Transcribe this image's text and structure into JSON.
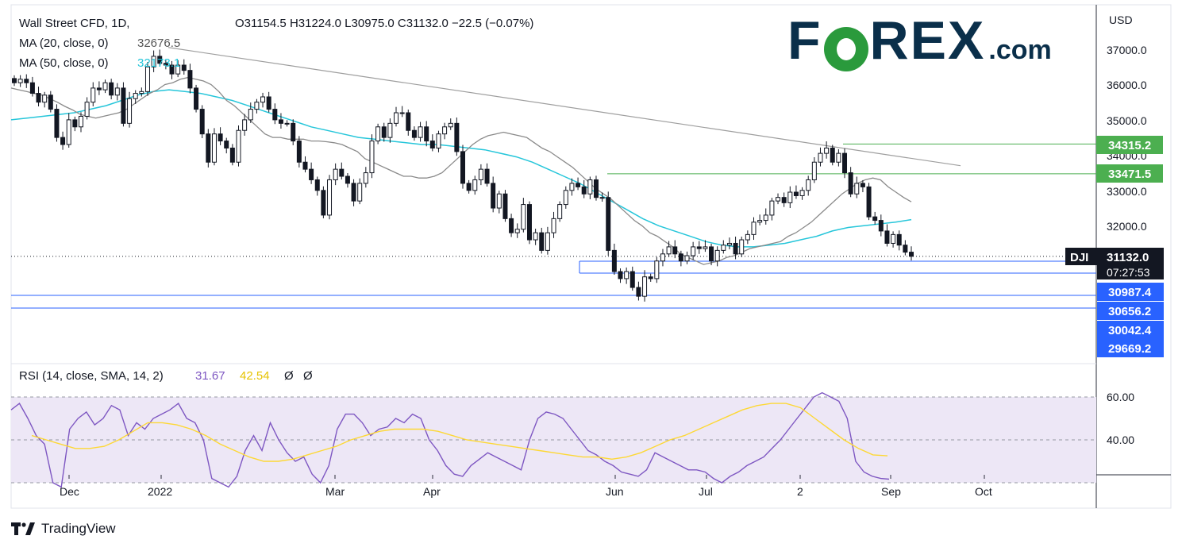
{
  "legend": {
    "symbol": "Wall Street CFD, 1D,",
    "ohlc": "O31154.5  H31224.0  L30975.0  C31132.0  −22.5 (−0.07%)",
    "ma20_label": "MA (20, close, 0)",
    "ma20_value": "32676.5",
    "ma50_label": "MA (50, close, 0)",
    "ma50_value": "32173.1",
    "rsi_label": "RSI (14, close, SMA, 14, 2)",
    "rsi_value": "31.67",
    "rsi_sma_value": "42.54",
    "rsi_extra1": "Ø",
    "rsi_extra2": "Ø"
  },
  "brand": {
    "name_pre": "F",
    "name_post": "REX",
    "suffix": ".com"
  },
  "footer": {
    "logo_text": "TradingView"
  },
  "price_axis": {
    "currency": "USD",
    "ticks": [
      "37000.0",
      "36000.0",
      "35000.0",
      "34000.0",
      "33000.0",
      "32000.0"
    ]
  },
  "rsi_axis": {
    "ticks": [
      "60.00",
      "40.00"
    ]
  },
  "x_axis": {
    "labels": [
      "Dec",
      "2022",
      "Mar",
      "Apr",
      "Jun",
      "Jul",
      "2",
      "Sep",
      "Oct"
    ]
  },
  "tags": {
    "level_34315": "34315.2",
    "level_33471": "33471.5",
    "symbol_tag": "DJI",
    "last_price": "31132.0",
    "countdown": "07:27:53",
    "level_30987": "30987.4",
    "level_30656": "30656.2",
    "level_30042": "30042.4",
    "level_29669": "29669.2"
  },
  "colors": {
    "bull": "#131722",
    "bear": "#131722",
    "ma20": "#8a8a8a",
    "ma50": "#26c6da",
    "rsi": "#7e57c2",
    "rsi_sma": "#fdd835",
    "rsi_band": "#ede7f6",
    "resistance": "#4caf50",
    "support": "#2962ff",
    "trendline": "#9e9e9e"
  },
  "chart_data": {
    "type": "candlestick",
    "title": "Wall Street CFD, 1D",
    "ylabel": "USD",
    "ylim": [
      29300,
      37900
    ],
    "price_at_last": 31132.0,
    "key_levels": [
      {
        "value": 34315.2,
        "kind": "resistance"
      },
      {
        "value": 33471.5,
        "kind": "resistance"
      },
      {
        "value": 30987.4,
        "kind": "support"
      },
      {
        "value": 30656.2,
        "kind": "support"
      },
      {
        "value": 30042.4,
        "kind": "support"
      },
      {
        "value": 29669.2,
        "kind": "support"
      }
    ],
    "trendline": {
      "from": 37050,
      "to": 33700
    },
    "closes": [
      36050,
      36150,
      36050,
      35750,
      35500,
      35700,
      35300,
      34500,
      34300,
      35000,
      34800,
      35100,
      35500,
      35900,
      35850,
      36050,
      35700,
      35900,
      34900,
      35600,
      35750,
      35800,
      36500,
      36800,
      36600,
      36550,
      36300,
      36550,
      36400,
      35900,
      35300,
      34600,
      33800,
      34600,
      34400,
      34200,
      33800,
      34700,
      35000,
      35300,
      35500,
      35650,
      35300,
      35000,
      34900,
      34900,
      34400,
      33800,
      33600,
      33300,
      33000,
      32300,
      33300,
      33600,
      33400,
      33200,
      32700,
      33200,
      33500,
      34400,
      34800,
      34500,
      34900,
      35200,
      35200,
      34700,
      34500,
      34800,
      34400,
      34200,
      34600,
      34800,
      34900,
      34100,
      33200,
      33000,
      33300,
      33600,
      33200,
      32500,
      32900,
      32200,
      31800,
      31900,
      32600,
      31600,
      31800,
      31300,
      31800,
      32200,
      32600,
      33000,
      33200,
      33100,
      32900,
      33300,
      32800,
      32800,
      31300,
      30700,
      30500,
      30700,
      30250,
      30000,
      30550,
      30500,
      31000,
      31200,
      31400,
      31200,
      31000,
      31150,
      31400,
      31350,
      31400,
      31000,
      31300,
      31450,
      31500,
      31200,
      31600,
      31750,
      32100,
      32150,
      32300,
      32700,
      32800,
      32650,
      32950,
      32850,
      33000,
      33300,
      33800,
      34050,
      34200,
      33800,
      34050,
      33500,
      32900,
      33200,
      33100,
      32250,
      32150,
      31850,
      31500,
      31750,
      31450,
      31250,
      31132
    ],
    "ma20": [
      35900,
      35850,
      35800,
      35750,
      35700,
      35600,
      35500,
      35380,
      35280,
      35150,
      35100,
      35050,
      35100,
      35150,
      35200,
      35300,
      35450,
      35600,
      35750,
      35850,
      36000,
      36050,
      36150,
      36200,
      36150,
      36100,
      36000,
      35800,
      35550,
      35400,
      35200,
      35000,
      34800,
      34600,
      34500,
      34500,
      34450,
      34450,
      34450,
      34400,
      34400,
      34380,
      34350,
      34300,
      34200,
      34100,
      33900,
      33800,
      33700,
      33600,
      33500,
      33400,
      33400,
      33350,
      33350,
      33400,
      33500,
      33700,
      33900,
      34100,
      34300,
      34450,
      34550,
      34600,
      34650,
      34600,
      34550,
      34500,
      34350,
      34200,
      34100,
      33950,
      33800,
      33650,
      33450,
      33250,
      33050,
      32900,
      32750,
      32550,
      32350,
      32150,
      32000,
      31800,
      31700,
      31550,
      31400,
      31200,
      31100,
      31000,
      30900,
      30950,
      31000,
      31100,
      31150,
      31250,
      31350,
      31400,
      31450,
      31500,
      31550,
      31700,
      31800,
      31950,
      32100,
      32300,
      32500,
      32700,
      32900,
      33050,
      33200,
      33300,
      33350,
      33300,
      33100,
      32950,
      32800,
      32676
    ],
    "ma50": [
      35000,
      35050,
      35100,
      35150,
      35200,
      35300,
      35400,
      35550,
      35700,
      35800,
      35850,
      35800,
      35750,
      35650,
      35550,
      35400,
      35250,
      35100,
      34950,
      34800,
      34700,
      34600,
      34500,
      34450,
      34400,
      34350,
      34300,
      34300,
      34250,
      34200,
      34150,
      34050,
      33950,
      33800,
      33600,
      33400,
      33200,
      32950,
      32700,
      32450,
      32200,
      32000,
      31850,
      31700,
      31550,
      31450,
      31400,
      31400,
      31450,
      31500,
      31600,
      31700,
      31850,
      31950,
      32000,
      32050,
      32100,
      32173
    ],
    "rsi": [
      64,
      67,
      60,
      52,
      48,
      30,
      28,
      55,
      60,
      63,
      57,
      60,
      66,
      64,
      52,
      58,
      55,
      60,
      62,
      64,
      67,
      60,
      58,
      50,
      32,
      30,
      28,
      33,
      45,
      52,
      45,
      58,
      50,
      44,
      40,
      42,
      34,
      30,
      38,
      55,
      62,
      62,
      58,
      52,
      55,
      56,
      60,
      58,
      62,
      60,
      50,
      45,
      38,
      34,
      33,
      38,
      41,
      44,
      42,
      40,
      38,
      36,
      50,
      60,
      63,
      62,
      60,
      55,
      50,
      45,
      43,
      40,
      38,
      35,
      34,
      33,
      36,
      44,
      42,
      40,
      38,
      36,
      36,
      35,
      32,
      30,
      33,
      35,
      38,
      40,
      42,
      46,
      50,
      55,
      60,
      65,
      70,
      72,
      70,
      68,
      60,
      40,
      35,
      33,
      32,
      31.67
    ],
    "rsi_sma": [
      52,
      50,
      48,
      46,
      46,
      47,
      50,
      54,
      58,
      58,
      57,
      55,
      52,
      48,
      45,
      42,
      40,
      40,
      41,
      43,
      45,
      47,
      50,
      52,
      54,
      55,
      55,
      55,
      54,
      52,
      50,
      49,
      48,
      47,
      46,
      45,
      44,
      43,
      42,
      42,
      41,
      42,
      44,
      47,
      50,
      52,
      55,
      58,
      61,
      64,
      66,
      67,
      67,
      65,
      60,
      55,
      50,
      46,
      43,
      42.54
    ]
  }
}
